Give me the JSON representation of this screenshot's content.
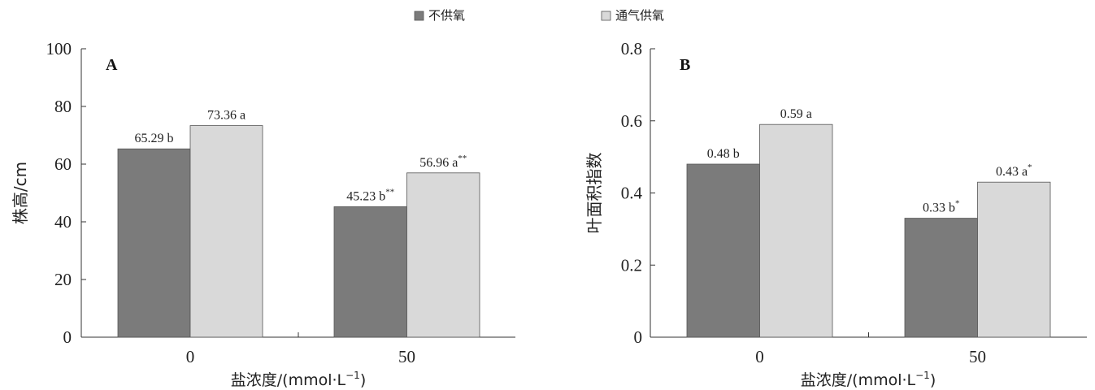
{
  "legend": {
    "items": [
      {
        "label": "不供氧",
        "color": "#7b7b7b"
      },
      {
        "label": "通气供氧",
        "color": "#d9d9d9"
      }
    ]
  },
  "chart_data": [
    {
      "type": "bar",
      "panel_label": "A",
      "categories": [
        "0",
        "50"
      ],
      "series": [
        {
          "name": "不供氧",
          "values": [
            65.29,
            45.23
          ],
          "labels": [
            "65.29 b",
            "45.23 b"
          ],
          "sups": [
            "",
            "**"
          ]
        },
        {
          "name": "通气供氧",
          "values": [
            73.36,
            56.96
          ],
          "labels": [
            "73.36 a",
            "56.96 a"
          ],
          "sups": [
            "",
            "**"
          ]
        }
      ],
      "xlabel": "盐浓度/(mmol·L",
      "xlabel_sup": "−1",
      "xlabel_close": ")",
      "ylabel": "株高/cm",
      "ylim": [
        0,
        100
      ],
      "yticks": [
        "0",
        "20",
        "40",
        "60",
        "80",
        "100"
      ]
    },
    {
      "type": "bar",
      "panel_label": "B",
      "categories": [
        "0",
        "50"
      ],
      "series": [
        {
          "name": "不供氧",
          "values": [
            0.48,
            0.33
          ],
          "labels": [
            "0.48 b",
            "0.33 b"
          ],
          "sups": [
            "",
            "*"
          ]
        },
        {
          "name": "通气供氧",
          "values": [
            0.59,
            0.43
          ],
          "labels": [
            "0.59 a",
            "0.43 a"
          ],
          "sups": [
            "",
            "*"
          ]
        }
      ],
      "xlabel": "盐浓度/(mmol·L",
      "xlabel_sup": "−1",
      "xlabel_close": ")",
      "ylabel": "叶面积指数",
      "ylim": [
        0,
        0.8
      ],
      "yticks": [
        "0",
        "0.2",
        "0.4",
        "0.6",
        "0.8"
      ]
    }
  ]
}
